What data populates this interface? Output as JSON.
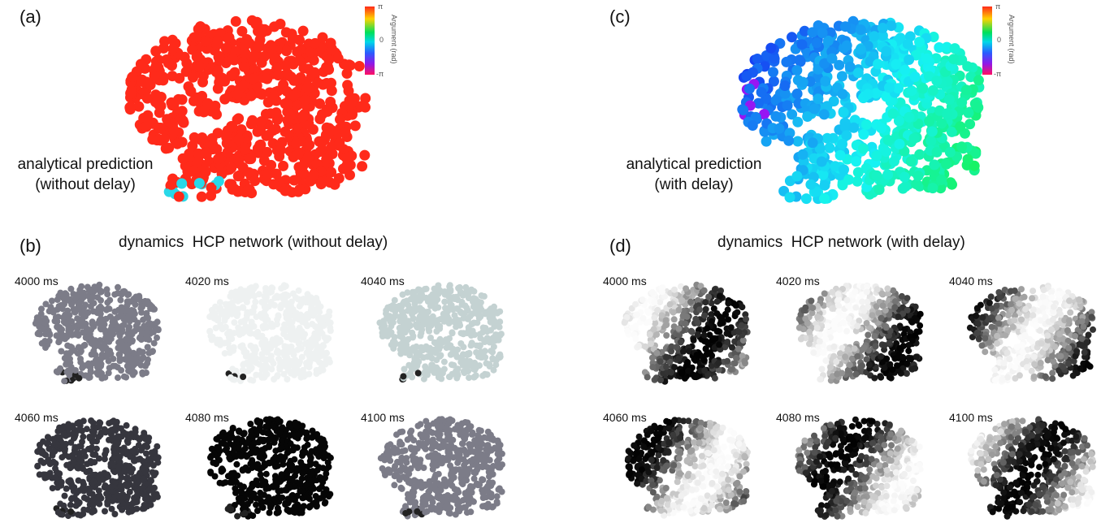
{
  "panels": {
    "a": {
      "letter": "(a)",
      "annotation_line1": "analytical prediction",
      "annotation_line2": "(without delay)"
    },
    "b": {
      "letter": "(b)",
      "heading": "dynamics  HCP network (without delay)"
    },
    "c": {
      "letter": "(c)",
      "annotation_line1": "analytical prediction",
      "annotation_line2": "(with delay)"
    },
    "d": {
      "letter": "(d)",
      "heading": "dynamics  HCP network (with delay)"
    }
  },
  "colorbar": {
    "title": "Argument (rad)",
    "tick_top": "π",
    "tick_mid": "0",
    "tick_bottom": "-π"
  },
  "snapshots": {
    "without_delay": [
      {
        "time": "4000 ms",
        "shade": "#7c7c88"
      },
      {
        "time": "4020 ms",
        "shade": "#eef1f1"
      },
      {
        "time": "4040 ms",
        "shade": "#c4d2d2"
      },
      {
        "time": "4060 ms",
        "shade": "#36363e"
      },
      {
        "time": "4080 ms",
        "shade": "#060606"
      },
      {
        "time": "4100 ms",
        "shade": "#7c7c88"
      }
    ],
    "with_delay": [
      {
        "time": "4000 ms"
      },
      {
        "time": "4020 ms"
      },
      {
        "time": "4040 ms"
      },
      {
        "time": "4060 ms"
      },
      {
        "time": "4080 ms"
      },
      {
        "time": "4100 ms"
      }
    ]
  },
  "colors": {
    "phase_zero": "#ff2a1a",
    "phase_with_delay_base": "#2a8cf0"
  }
}
